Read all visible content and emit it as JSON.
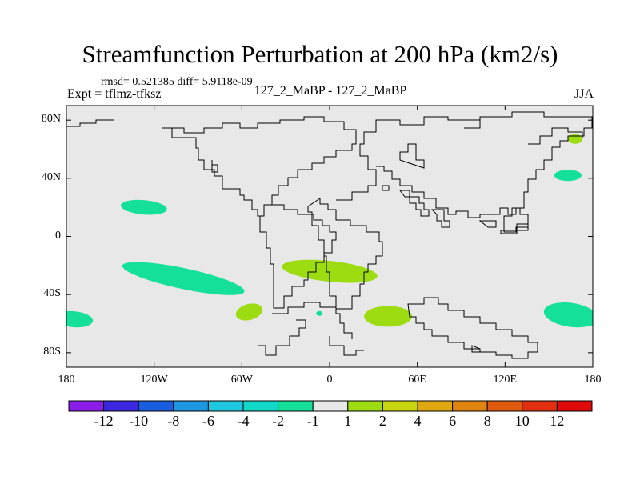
{
  "title": "Streamfunction Perturbation at 200 hPa (km2/s)",
  "stats_line": "rmsd= 0.521385  diff= 5.9118e-09",
  "experiment": "Expt = tflmz-tfksz",
  "cases": "127_2_MaBP - 127_2_MaBP",
  "season": "JJA",
  "y_axis": {
    "ticks": [
      {
        "label": "80N",
        "lat": 80
      },
      {
        "label": "40N",
        "lat": 40
      },
      {
        "label": "0",
        "lat": 0
      },
      {
        "label": "40S",
        "lat": -40
      },
      {
        "label": "80S",
        "lat": -80
      }
    ],
    "range": [
      -90,
      90
    ]
  },
  "x_axis": {
    "ticks": [
      {
        "label": "180",
        "lon": -180
      },
      {
        "label": "120W",
        "lon": -120
      },
      {
        "label": "60W",
        "lon": -60
      },
      {
        "label": "0",
        "lon": 0
      },
      {
        "label": "60E",
        "lon": 60
      },
      {
        "label": "120E",
        "lon": 120
      },
      {
        "label": "180",
        "lon": 180
      }
    ],
    "range": [
      -180,
      180
    ]
  },
  "colorbar": {
    "colors": [
      "#8a1ee8",
      "#3c27e0",
      "#1a5ee0",
      "#1c97e0",
      "#1fc7e0",
      "#12d8c8",
      "#14e09a",
      "#e8e8e8",
      "#9ddc10",
      "#c8d410",
      "#e0a810",
      "#e08410",
      "#e05a10",
      "#e03010",
      "#e00a0a"
    ],
    "labels": [
      "-12",
      "-10",
      "-8",
      "-6",
      "-4",
      "-2",
      "-1",
      "1",
      "2",
      "4",
      "6",
      "8",
      "10",
      "12"
    ]
  },
  "chart_data": {
    "type": "heatmap",
    "title": "Streamfunction Perturbation at 200 hPa (km2/s)",
    "projection": "cylindrical-equidistant",
    "units": "km2/s",
    "background_bin": "-1 to 1",
    "anomaly_patches": [
      {
        "name": "north-pacific-tropics",
        "lon": -127,
        "lat": 20,
        "bin": "-1 to -2",
        "color": "#14e09a"
      },
      {
        "name": "south-pacific-band",
        "lon": -100,
        "lat": -29,
        "bin": "-1 to -2",
        "color": "#14e09a"
      },
      {
        "name": "south-atlantic-east",
        "lon": 0,
        "lat": -24,
        "bin": "1 to 2",
        "color": "#9ddc10"
      },
      {
        "name": "south-atlantic-west",
        "lon": -55,
        "lat": -52,
        "bin": "1 to 2",
        "color": "#9ddc10"
      },
      {
        "name": "south-indian",
        "lon": 40,
        "lat": -55,
        "bin": "1 to 2",
        "color": "#9ddc10"
      },
      {
        "name": "southeast-pacific",
        "lon": 165,
        "lat": -54,
        "bin": "-1 to -2",
        "color": "#14e09a"
      },
      {
        "name": "southern-ocean-west-edge",
        "lon": -175,
        "lat": -57,
        "bin": "-1 to -2",
        "color": "#14e09a"
      },
      {
        "name": "north-west-pacific",
        "lon": 163,
        "lat": 42,
        "bin": "-1 to -2",
        "color": "#14e09a"
      },
      {
        "name": "bering-sea",
        "lon": 168,
        "lat": 67,
        "bin": "1 to 2",
        "color": "#9ddc10"
      },
      {
        "name": "drake-small",
        "lon": -7,
        "lat": -53,
        "bin": "-1 to -2",
        "color": "#14e09a"
      }
    ]
  }
}
